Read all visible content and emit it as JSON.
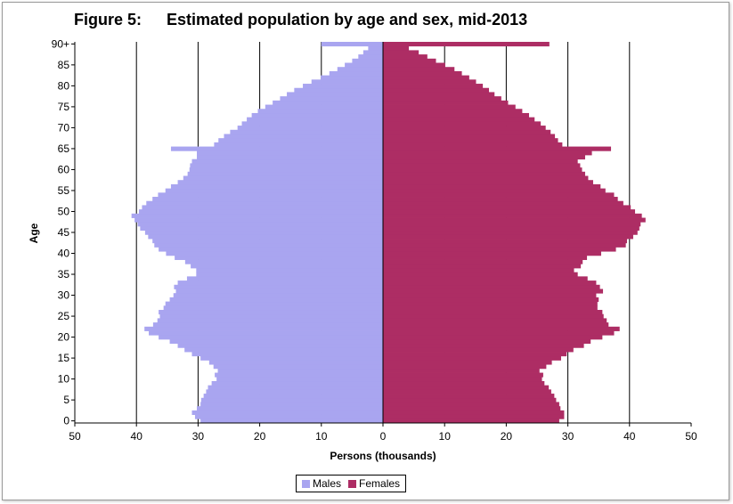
{
  "figure_label": "Figure 5:",
  "title": "Estimated population by age and sex, mid-2013",
  "chart_data": {
    "type": "bar",
    "orientation": "horizontal",
    "title": "Estimated population by age and sex, mid-2013",
    "xlabel": "Persons (thousands)",
    "ylabel": "Age",
    "xlim": [
      -50,
      50
    ],
    "x_ticks": [
      50,
      40,
      30,
      20,
      10,
      0,
      10,
      20,
      30,
      40,
      50
    ],
    "y_ticks": [
      "0",
      "5",
      "10",
      "15",
      "20",
      "25",
      "30",
      "35",
      "40",
      "45",
      "50",
      "55",
      "60",
      "65",
      "70",
      "75",
      "80",
      "85",
      "90+"
    ],
    "grid": "vertical major gridlines every 10",
    "legend_position": "bottom-center",
    "ages": [
      "0",
      "1",
      "2",
      "3",
      "4",
      "5",
      "6",
      "7",
      "8",
      "9",
      "10",
      "11",
      "12",
      "13",
      "14",
      "15",
      "16",
      "17",
      "18",
      "19",
      "20",
      "21",
      "22",
      "23",
      "24",
      "25",
      "26",
      "27",
      "28",
      "29",
      "30",
      "31",
      "32",
      "33",
      "34",
      "35",
      "36",
      "37",
      "38",
      "39",
      "40",
      "41",
      "42",
      "43",
      "44",
      "45",
      "46",
      "47",
      "48",
      "49",
      "50",
      "51",
      "52",
      "53",
      "54",
      "55",
      "56",
      "57",
      "58",
      "59",
      "60",
      "61",
      "62",
      "63",
      "64",
      "65",
      "66",
      "67",
      "68",
      "69",
      "70",
      "71",
      "72",
      "73",
      "74",
      "75",
      "76",
      "77",
      "78",
      "79",
      "80",
      "81",
      "82",
      "83",
      "84",
      "85",
      "86",
      "87",
      "88",
      "89",
      "90+"
    ],
    "series": [
      {
        "name": "Males",
        "color": "#a9a5f0",
        "values": [
          29.6,
          30.5,
          31.0,
          30.2,
          29.6,
          29.5,
          29.1,
          28.7,
          28.4,
          27.8,
          27.0,
          27.3,
          26.8,
          27.5,
          28.2,
          29.6,
          31.0,
          32.2,
          33.3,
          34.6,
          36.4,
          38.0,
          38.7,
          37.3,
          36.6,
          36.2,
          36.4,
          35.6,
          35.3,
          34.6,
          34.0,
          33.6,
          33.9,
          33.3,
          31.8,
          30.3,
          30.3,
          31.2,
          32.1,
          33.8,
          35.2,
          36.4,
          37.1,
          37.4,
          38.1,
          38.6,
          39.4,
          39.8,
          40.3,
          40.8,
          39.6,
          39.1,
          38.4,
          37.4,
          36.5,
          35.3,
          34.4,
          33.3,
          32.4,
          31.7,
          31.4,
          31.3,
          31.0,
          30.2,
          30.2,
          34.4,
          27.4,
          26.7,
          25.8,
          24.8,
          23.6,
          22.9,
          22.1,
          21.3,
          20.3,
          19.1,
          17.9,
          16.7,
          15.6,
          14.4,
          13.0,
          11.6,
          10.1,
          8.7,
          7.4,
          6.2,
          5.0,
          4.0,
          3.2,
          2.4,
          10.0
        ]
      },
      {
        "name": "Females",
        "color": "#ad2d64",
        "values": [
          28.6,
          29.4,
          29.4,
          28.8,
          28.6,
          28.1,
          27.8,
          27.3,
          26.9,
          26.2,
          25.8,
          26.0,
          25.4,
          26.5,
          27.4,
          28.9,
          29.8,
          30.9,
          32.6,
          33.7,
          35.6,
          37.5,
          38.4,
          36.6,
          36.3,
          35.8,
          35.6,
          34.8,
          34.8,
          35.0,
          34.6,
          35.7,
          35.2,
          34.6,
          33.2,
          31.6,
          31.0,
          32.1,
          32.4,
          33.1,
          35.4,
          37.8,
          39.4,
          39.6,
          40.6,
          41.3,
          41.6,
          41.8,
          42.6,
          42.0,
          40.9,
          40.2,
          39.0,
          38.1,
          37.5,
          36.1,
          35.3,
          34.1,
          33.3,
          32.8,
          32.3,
          32.0,
          31.6,
          32.8,
          33.9,
          37.0,
          29.1,
          28.4,
          27.9,
          27.2,
          26.4,
          25.6,
          24.6,
          23.7,
          22.6,
          21.5,
          20.3,
          19.2,
          18.1,
          17.2,
          16.2,
          15.1,
          14.0,
          12.8,
          11.6,
          10.1,
          8.6,
          7.2,
          5.8,
          4.2,
          27.0
        ]
      }
    ]
  },
  "legend": {
    "males": "Males",
    "females": "Females",
    "males_color": "#a9a5f0",
    "females_color": "#ad2d64"
  }
}
